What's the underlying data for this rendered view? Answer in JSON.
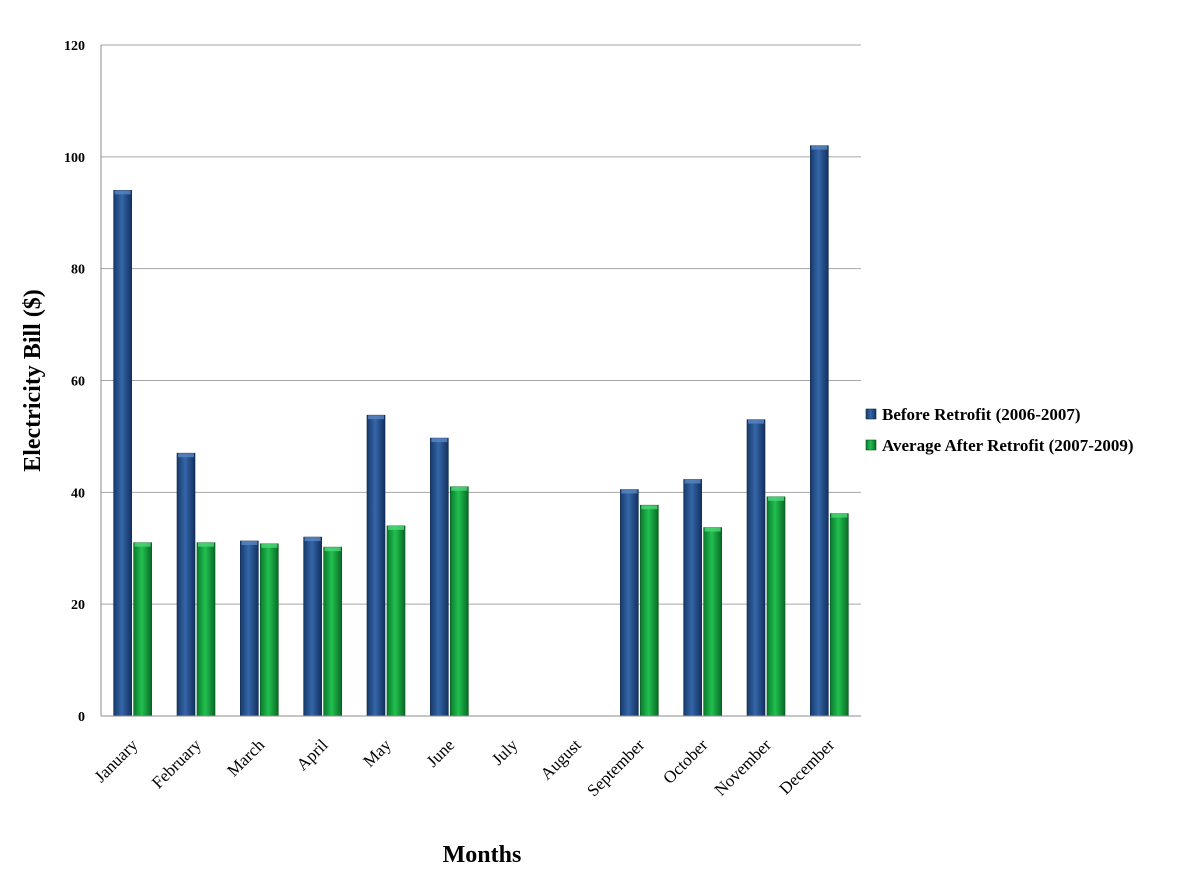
{
  "chart_data": {
    "type": "bar",
    "categories": [
      "January",
      "February",
      "March",
      "April",
      "May",
      "June",
      "July",
      "August",
      "September",
      "October",
      "November",
      "December"
    ],
    "series": [
      {
        "name": "Before Retrofit (2006-2007)",
        "color": "#1f4e8c",
        "values": [
          94,
          47,
          31.3,
          32,
          53.8,
          49.7,
          null,
          null,
          40.5,
          42.3,
          53,
          102
        ]
      },
      {
        "name": "Average After Retrofit (2007-2009)",
        "color": "#0f9a3c",
        "values": [
          31,
          31,
          30.8,
          30.2,
          34,
          41,
          null,
          null,
          37.7,
          33.7,
          39.2,
          36.2
        ]
      }
    ],
    "title": "",
    "xlabel": "Months",
    "ylabel": "Electricity Bill ($)",
    "ylim": [
      0,
      120
    ],
    "yticks": [
      0,
      20,
      40,
      60,
      80,
      100,
      120
    ],
    "grid": true,
    "legend_position": "right"
  }
}
